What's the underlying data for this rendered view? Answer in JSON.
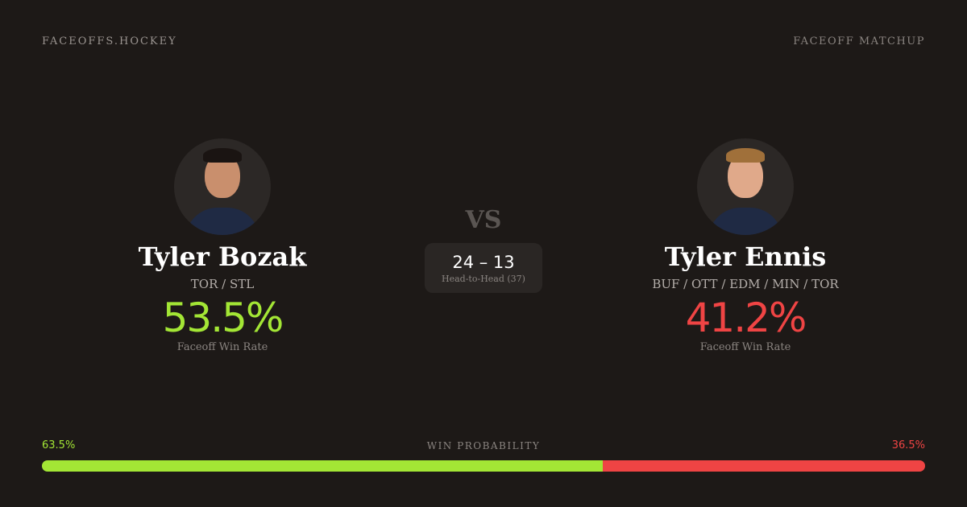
{
  "brand": "FACEOFFS.HOCKEY",
  "tag": "FACEOFF MATCHUP",
  "vs": "VS",
  "colors": {
    "green": "#a3e635",
    "red": "#ef4444"
  },
  "players": [
    {
      "name": "Tyler Bozak",
      "teams": "TOR / STL",
      "win_rate": "53.5%",
      "win_rate_label": "Faceoff Win Rate",
      "photo": "player-headshot"
    },
    {
      "name": "Tyler Ennis",
      "teams": "BUF / OTT / EDM / MIN / TOR",
      "win_rate": "41.2%",
      "win_rate_label": "Faceoff Win Rate",
      "photo": "player-headshot"
    }
  ],
  "head_to_head": {
    "score": "24 – 13",
    "label": "Head-to-Head (37)"
  },
  "win_probability": {
    "label": "WIN PROBABILITY",
    "left": "63.5%",
    "right": "36.5%",
    "left_value": 63.5,
    "right_value": 36.5
  }
}
